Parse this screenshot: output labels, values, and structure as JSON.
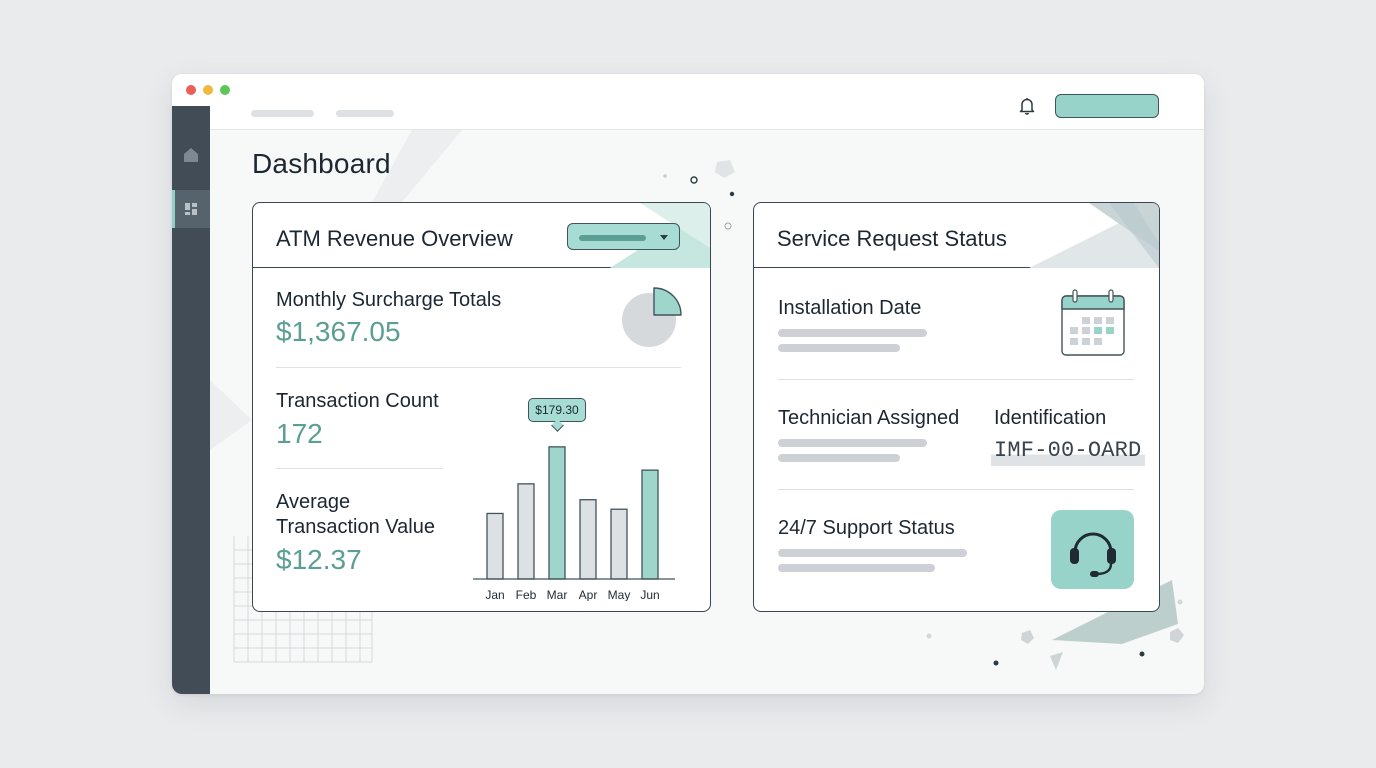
{
  "page": {
    "title": "Dashboard"
  },
  "revenue_card": {
    "title": "ATM Revenue Overview",
    "metrics": [
      {
        "label": "Monthly Surcharge Totals",
        "value": "$1,367.05"
      },
      {
        "label": "Transaction Count",
        "value": "172"
      },
      {
        "label": "Average Transaction Value",
        "value": "$12.37"
      }
    ],
    "tooltip": "$179.30"
  },
  "chart_data": {
    "type": "bar",
    "categories": [
      "Jan",
      "Feb",
      "Mar",
      "Apr",
      "May",
      "Jun"
    ],
    "values": [
      62,
      90,
      125,
      75,
      66,
      103
    ],
    "highlighted": [
      "Mar",
      "Jun"
    ],
    "colors": {
      "highlight": "#9fd6cc",
      "normal": "#dee1e4",
      "stroke": "#41545c"
    },
    "ylim": [
      0,
      140
    ],
    "grid": false
  },
  "service_card": {
    "title": "Service Request Status",
    "installation": {
      "label": "Installation Date"
    },
    "technician": {
      "label": "Technician Assigned"
    },
    "identification": {
      "label": "Identification",
      "value": "IMF-00-OARD"
    },
    "support": {
      "label": "24/7 Support Status"
    }
  },
  "icons": {
    "sidebar": [
      "home-icon",
      "dashboard-icon"
    ],
    "header": [
      "bell-icon"
    ],
    "widgets": [
      "pie-chart-icon",
      "calendar-icon",
      "headset-icon"
    ]
  },
  "colors": {
    "accent": "#98d3c9",
    "accent_dark": "#5b9e93",
    "sidebar": "#414c56"
  }
}
